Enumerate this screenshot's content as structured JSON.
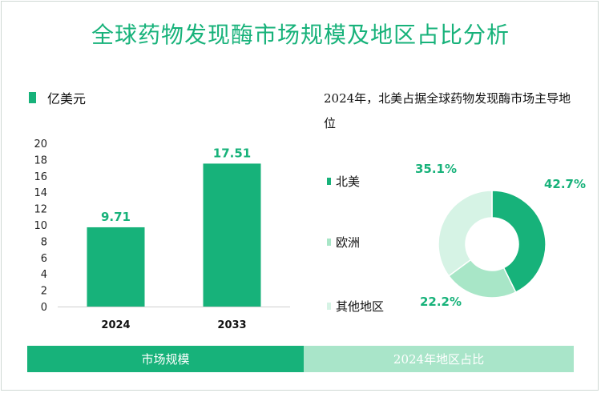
{
  "title": "全球药物发现酶市场规模及地区占比分析",
  "colors": {
    "accent": "#17b27a",
    "europe": "#a8e6c7",
    "others": "#d6f3e5",
    "footer_left": "#17b27a",
    "footer_right": "#a9e5c9",
    "title": "#17b27a"
  },
  "chart_data": [
    {
      "type": "bar",
      "legend": "亿美元",
      "categories": [
        "2024",
        "2033"
      ],
      "values": [
        9.71,
        17.51
      ],
      "data_labels": [
        "9.71",
        "17.51"
      ],
      "ylim": [
        0,
        20
      ],
      "yticks": [
        "0",
        "2",
        "4",
        "6",
        "8",
        "10",
        "12",
        "14",
        "16",
        "18",
        "20"
      ],
      "grid": false
    },
    {
      "type": "pie",
      "donut": true,
      "title": "2024年，北美占据全球药物发现酶市场主导地位",
      "labels": [
        "北美",
        "欧洲",
        "其他地区"
      ],
      "values": [
        42.7,
        22.2,
        35.1
      ],
      "value_labels": [
        "42.7%",
        "22.2%",
        "35.1%"
      ],
      "colors": [
        "#17b27a",
        "#a8e6c7",
        "#d6f3e5"
      ]
    }
  ],
  "footer": {
    "left_label": "市场规模",
    "right_label": "2024年地区占比"
  }
}
